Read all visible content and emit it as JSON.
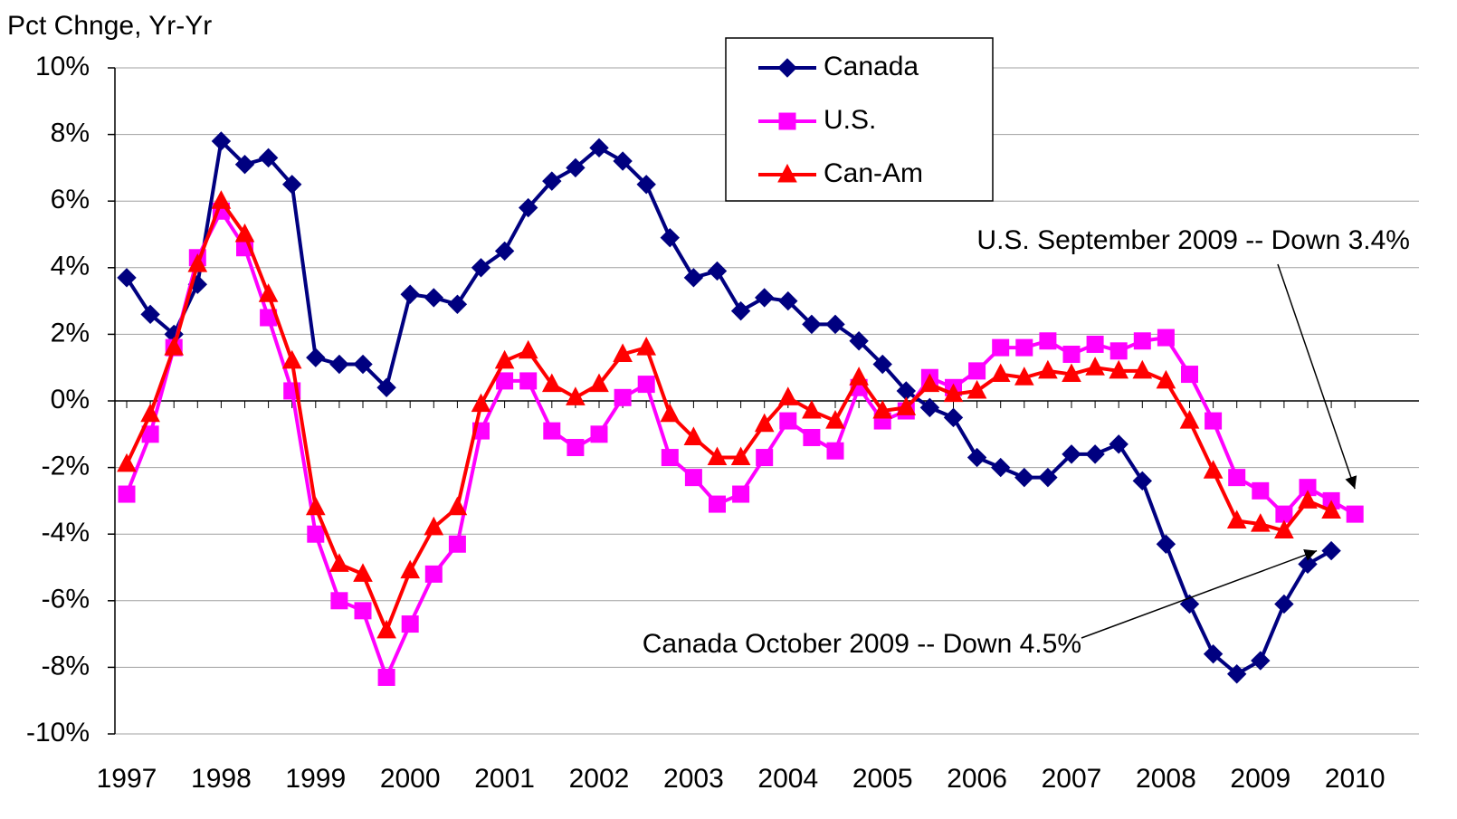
{
  "chart_data": {
    "type": "line",
    "y_axis_label": "Pct Chnge, Yr-Yr",
    "categories": [
      "1997",
      null,
      null,
      null,
      "1998",
      null,
      null,
      null,
      "1999",
      null,
      null,
      null,
      "2000",
      null,
      null,
      null,
      "2001",
      null,
      null,
      null,
      "2002",
      null,
      null,
      null,
      "2003",
      null,
      null,
      null,
      "2004",
      null,
      null,
      null,
      "2005",
      null,
      null,
      null,
      "2006",
      null,
      null,
      null,
      "2007",
      null,
      null,
      null,
      "2008",
      null,
      null,
      null,
      "2009",
      null,
      null,
      null,
      "2010"
    ],
    "series": [
      {
        "name": "Canada",
        "color": "#000080",
        "marker": "diamond",
        "values": [
          3.7,
          2.6,
          2.0,
          3.5,
          7.8,
          7.1,
          7.3,
          6.5,
          1.3,
          1.1,
          1.1,
          0.4,
          3.2,
          3.1,
          2.9,
          4.0,
          4.5,
          5.8,
          6.6,
          7.0,
          7.6,
          7.2,
          6.5,
          4.9,
          3.7,
          3.9,
          2.7,
          3.1,
          3.0,
          2.3,
          2.3,
          1.8,
          1.1,
          0.3,
          -0.2,
          -0.5,
          -1.7,
          -2.0,
          -2.3,
          -2.3,
          -1.6,
          -1.6,
          -1.3,
          -2.4,
          -4.3,
          -6.1,
          -7.6,
          -8.2,
          -7.8,
          -6.1,
          -4.9,
          -4.5,
          null
        ]
      },
      {
        "name": "U.S.",
        "color": "#FF00FF",
        "marker": "square",
        "values": [
          -2.8,
          -1.0,
          1.6,
          4.3,
          5.7,
          4.6,
          2.5,
          0.3,
          -4.0,
          -6.0,
          -6.3,
          -8.3,
          -6.7,
          -5.2,
          -4.3,
          -0.9,
          0.6,
          0.6,
          -0.9,
          -1.4,
          -1.0,
          0.1,
          0.5,
          -1.7,
          -2.3,
          -3.1,
          -2.8,
          -1.7,
          -0.6,
          -1.1,
          -1.5,
          0.4,
          -0.6,
          -0.3,
          0.7,
          0.4,
          0.9,
          1.6,
          1.6,
          1.8,
          1.4,
          1.7,
          1.5,
          1.8,
          1.9,
          0.8,
          -0.6,
          -2.3,
          -2.7,
          -3.4,
          -2.6,
          -3.0,
          -3.4
        ]
      },
      {
        "name": "Can-Am",
        "color": "#FF0000",
        "marker": "triangle",
        "values": [
          -1.9,
          -0.4,
          1.6,
          4.1,
          6.0,
          5.0,
          3.2,
          1.2,
          -3.2,
          -4.9,
          -5.2,
          -6.9,
          -5.1,
          -3.8,
          -3.2,
          -0.1,
          1.2,
          1.5,
          0.5,
          0.1,
          0.5,
          1.4,
          1.6,
          -0.4,
          -1.1,
          -1.7,
          -1.7,
          -0.7,
          0.1,
          -0.3,
          -0.6,
          0.7,
          -0.3,
          -0.2,
          0.5,
          0.2,
          0.3,
          0.8,
          0.7,
          0.9,
          0.8,
          1.0,
          0.9,
          0.9,
          0.6,
          -0.6,
          -2.1,
          -3.6,
          -3.7,
          -3.9,
          -3.0,
          -3.3,
          null
        ]
      }
    ],
    "ylim": [
      -10,
      10
    ],
    "yticks": [
      {
        "value": -10,
        "label": "-10%"
      },
      {
        "value": -8,
        "label": "-8%"
      },
      {
        "value": -6,
        "label": "-6%"
      },
      {
        "value": -4,
        "label": "-4%"
      },
      {
        "value": -2,
        "label": "-2%"
      },
      {
        "value": 0,
        "label": "0%"
      },
      {
        "value": 2,
        "label": "2%"
      },
      {
        "value": 4,
        "label": "4%"
      },
      {
        "value": 6,
        "label": "6%"
      },
      {
        "value": 8,
        "label": "8%"
      },
      {
        "value": 10,
        "label": "10%"
      }
    ],
    "grid": true,
    "legend": "top",
    "annotations": [
      {
        "text": "U.S. September 2009 -- Down 3.4%",
        "series": 1,
        "index": 52
      },
      {
        "text": "Canada October 2009 -- Down 4.5%",
        "series": 0,
        "index": 51
      }
    ]
  }
}
